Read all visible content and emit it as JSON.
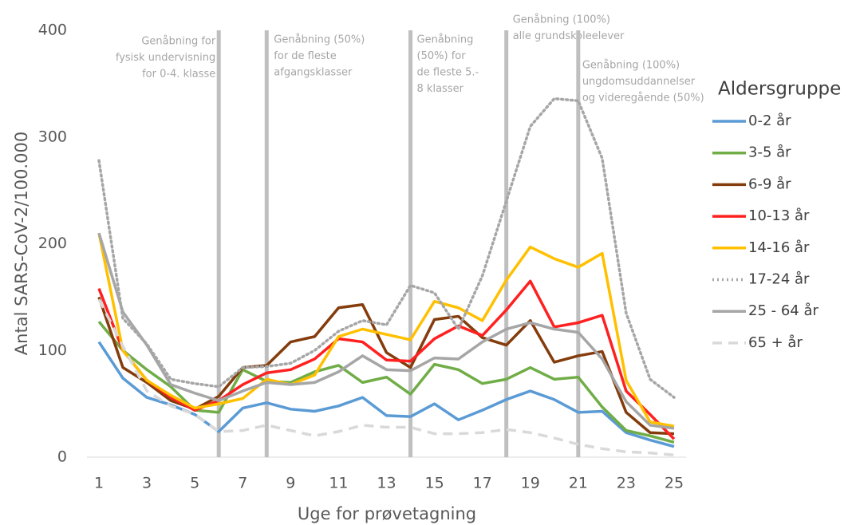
{
  "chart_data": {
    "type": "line",
    "x_label": "Uge for prøvetagning",
    "y_label": "Antal SARS-CoV-2/100.000",
    "legend_title": "Aldersgruppe",
    "legend": "right",
    "x": [
      1,
      2,
      3,
      4,
      5,
      6,
      7,
      8,
      9,
      10,
      11,
      12,
      13,
      14,
      15,
      16,
      17,
      18,
      19,
      20,
      21,
      22,
      23,
      24,
      25
    ],
    "xlim": [
      0.5,
      25.5
    ],
    "xticks": [
      1,
      3,
      5,
      7,
      9,
      11,
      13,
      15,
      17,
      19,
      21,
      23,
      25
    ],
    "ylim": [
      0,
      400
    ],
    "yticks": [
      0,
      100,
      200,
      300,
      400
    ],
    "series": [
      {
        "name": "0-2 år",
        "color": "#5b9bd5",
        "style": "solid",
        "values": [
          108,
          74,
          56,
          49,
          40,
          24,
          46,
          51,
          45,
          43,
          48,
          56,
          39,
          38,
          50,
          35,
          44,
          54,
          62,
          54,
          42,
          43,
          23,
          16,
          10
        ]
      },
      {
        "name": "3-5 år",
        "color": "#70ad47",
        "style": "solid",
        "values": [
          127,
          100,
          82,
          66,
          44,
          42,
          82,
          71,
          70,
          80,
          86,
          70,
          75,
          59,
          87,
          82,
          69,
          73,
          84,
          73,
          75,
          47,
          25,
          20,
          14
        ]
      },
      {
        "name": "6-9 år",
        "color": "#843c0c",
        "style": "solid",
        "values": [
          150,
          84,
          70,
          53,
          45,
          57,
          84,
          86,
          108,
          113,
          140,
          143,
          98,
          84,
          129,
          132,
          112,
          105,
          128,
          89,
          95,
          99,
          42,
          23,
          22
        ]
      },
      {
        "name": "10-13 år",
        "color": "#ff2020",
        "style": "solid",
        "values": [
          158,
          100,
          72,
          56,
          44,
          53,
          68,
          79,
          82,
          92,
          111,
          108,
          91,
          90,
          111,
          123,
          114,
          138,
          165,
          122,
          126,
          133,
          62,
          40,
          17
        ]
      },
      {
        "name": "14-16 år",
        "color": "#ffc000",
        "style": "solid",
        "values": [
          210,
          100,
          72,
          58,
          46,
          50,
          55,
          73,
          68,
          77,
          113,
          120,
          115,
          110,
          146,
          140,
          128,
          166,
          197,
          186,
          178,
          191,
          72,
          33,
          29
        ]
      },
      {
        "name": "17-24 år",
        "color": "#a6a6a6",
        "style": "dotted",
        "values": [
          278,
          130,
          106,
          73,
          69,
          66,
          84,
          85,
          88,
          100,
          118,
          128,
          124,
          161,
          154,
          120,
          170,
          240,
          310,
          336,
          334,
          280,
          135,
          73,
          56
        ]
      },
      {
        "name": "25 - 64 år",
        "color": "#a6a6a6",
        "style": "solid",
        "values": [
          210,
          136,
          105,
          68,
          60,
          53,
          62,
          70,
          68,
          70,
          80,
          95,
          82,
          81,
          93,
          92,
          108,
          120,
          126,
          120,
          117,
          92,
          52,
          30,
          27
        ]
      },
      {
        "name": "65 + år",
        "color": "#d9d9d9",
        "style": "dashed",
        "values": [
          148,
          104,
          62,
          48,
          40,
          24,
          25,
          30,
          25,
          20,
          24,
          30,
          28,
          28,
          22,
          22,
          23,
          26,
          23,
          18,
          12,
          8,
          5,
          4,
          2
        ]
      }
    ],
    "annotations": [
      {
        "x": 6,
        "text": [
          "Genåbning for",
          "fysisk undervisning",
          "for 0-4. klasse"
        ]
      },
      {
        "x": 8,
        "text": [
          "Genåbning (50%)",
          "for de fleste",
          "afgangsklasser"
        ]
      },
      {
        "x": 14,
        "text": [
          "Genåbning",
          "(50%) for",
          "de fleste 5.-",
          "8 klasser"
        ]
      },
      {
        "x": 18,
        "text": [
          "Genåbning (100%)",
          "alle grundskoleelever"
        ]
      },
      {
        "x": 21,
        "text": [
          "Genåbning (100%)",
          "ungdomsuddannelser",
          "og videregående (50%)"
        ]
      }
    ]
  }
}
